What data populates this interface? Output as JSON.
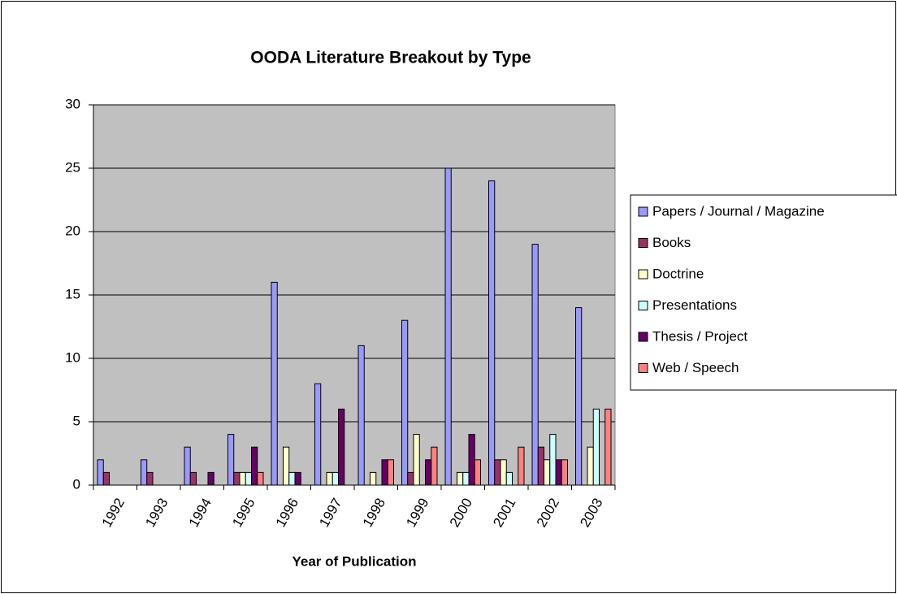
{
  "chart_data": {
    "type": "bar",
    "title": "OODA Literature Breakout by Type",
    "x_label": "Year of Publication",
    "categories": [
      "1992",
      "1993",
      "1994",
      "1995",
      "1996",
      "1997",
      "1998",
      "1999",
      "2000",
      "2001",
      "2002",
      "2003"
    ],
    "series": [
      {
        "name": "Papers / Journal / Magazine",
        "color": "#9999ff",
        "values": [
          2,
          2,
          3,
          4,
          16,
          8,
          11,
          13,
          25,
          24,
          19,
          14
        ]
      },
      {
        "name": "Books",
        "color": "#993366",
        "values": [
          1,
          1,
          1,
          1,
          0,
          0,
          0,
          1,
          0,
          2,
          3,
          0
        ]
      },
      {
        "name": "Doctrine",
        "color": "#ffffcc",
        "values": [
          0,
          0,
          0,
          1,
          3,
          1,
          1,
          4,
          1,
          2,
          2,
          3
        ]
      },
      {
        "name": "Presentations",
        "color": "#ccffff",
        "values": [
          0,
          0,
          0,
          1,
          1,
          1,
          0,
          0,
          1,
          1,
          4,
          6
        ]
      },
      {
        "name": "Thesis / Project",
        "color": "#660066",
        "values": [
          0,
          0,
          1,
          3,
          1,
          6,
          2,
          2,
          4,
          0,
          2,
          0
        ]
      },
      {
        "name": "Web / Speech",
        "color": "#ff8080",
        "values": [
          0,
          0,
          0,
          1,
          0,
          0,
          2,
          3,
          2,
          3,
          2,
          6
        ]
      }
    ],
    "ylim": [
      0,
      30
    ],
    "yticks": [
      0,
      5,
      10,
      15,
      20,
      25,
      30
    ],
    "grid": true,
    "legend": "right",
    "plot_background": "#c0c0c0"
  }
}
